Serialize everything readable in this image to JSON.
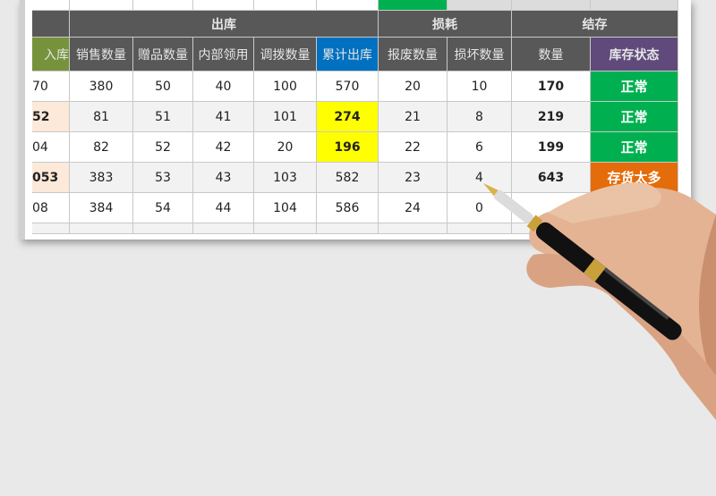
{
  "colors": {
    "header": "#585858",
    "green_header": "#76933c",
    "blue_header": "#0070c0",
    "purple_header": "#604a7b",
    "status_normal": "#00b050",
    "status_over": "#e46c0a",
    "highlight": "#ffff00",
    "peach": "#fde9d9"
  },
  "group_headers": {
    "out": "出库",
    "loss": "损耗",
    "stock": "结存"
  },
  "columns": [
    "入库",
    "销售数量",
    "赠品数量",
    "内部领用",
    "调拨数量",
    "累计出库",
    "报废数量",
    "损坏数量",
    "数量",
    "库存状态"
  ],
  "rows": [
    {
      "cells": [
        "70",
        "380",
        "50",
        "40",
        "100",
        "570",
        "20",
        "10",
        "170"
      ],
      "status": "正常",
      "status_type": "normal"
    },
    {
      "cells": [
        "52",
        "81",
        "51",
        "41",
        "101",
        "274",
        "21",
        "8",
        "219"
      ],
      "status": "正常",
      "status_type": "normal"
    },
    {
      "cells": [
        "04",
        "82",
        "52",
        "42",
        "20",
        "196",
        "22",
        "6",
        "199"
      ],
      "status": "正常",
      "status_type": "normal"
    },
    {
      "cells": [
        "053",
        "383",
        "53",
        "43",
        "103",
        "582",
        "23",
        "4",
        "643"
      ],
      "status": "存货太多",
      "status_type": "over"
    },
    {
      "cells": [
        "08",
        "384",
        "54",
        "44",
        "104",
        "586",
        "24",
        "0",
        ""
      ],
      "status": "",
      "status_type": "over"
    }
  ]
}
